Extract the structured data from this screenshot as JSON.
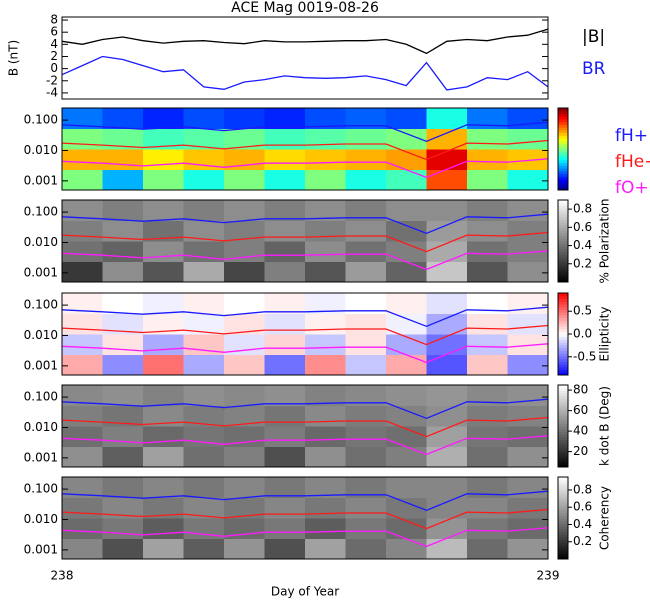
{
  "chart_data": [
    {
      "type": "line",
      "title": "ACE Mag 0019-08-26",
      "y_label": "B (nT)",
      "x": [
        238.0,
        238.0417,
        238.0833,
        238.125,
        238.1667,
        238.2083,
        238.25,
        238.2917,
        238.3333,
        238.375,
        238.4167,
        238.4583,
        238.5,
        238.5417,
        238.5833,
        238.625,
        238.6667,
        238.7083,
        238.75,
        238.7917,
        238.8333,
        238.875,
        238.9167,
        238.9583,
        239.0
      ],
      "series": [
        {
          "name": "|B|",
          "color": "#000000",
          "values": [
            4.5,
            4.0,
            4.8,
            5.2,
            4.6,
            4.2,
            4.5,
            4.6,
            4.3,
            4.1,
            4.6,
            4.4,
            4.4,
            4.5,
            4.6,
            4.6,
            4.8,
            4.0,
            2.5,
            4.5,
            4.8,
            4.6,
            5.2,
            5.5,
            6.5
          ]
        },
        {
          "name": "BR",
          "color": "#1a1aff",
          "values": [
            -1.0,
            0.5,
            2.0,
            1.5,
            0.5,
            -0.5,
            -0.2,
            -3.0,
            -3.4,
            -2.2,
            -1.8,
            -1.2,
            -1.5,
            -1.6,
            -1.5,
            -1.2,
            -1.8,
            -2.8,
            1.0,
            -3.5,
            -3.0,
            -1.5,
            -1.8,
            -0.5,
            -3.0
          ]
        }
      ],
      "xlim": [
        238,
        239
      ],
      "ylim": [
        -5,
        8.5
      ],
      "yticks": [
        -4,
        -2,
        0,
        2,
        4,
        6,
        8
      ]
    },
    {
      "type": "heatmap",
      "colormap": "jet",
      "clim": [
        -7,
        -2
      ],
      "log_y": true,
      "xlim": [
        238,
        239
      ],
      "ylim": [
        0.0005,
        0.25
      ],
      "yticks": [
        {
          "value": 0.001,
          "label": "0.001"
        },
        {
          "value": 0.01,
          "label": "0.010"
        },
        {
          "value": 0.1,
          "label": "0.100"
        }
      ],
      "z": [
        [
          -4.5,
          -5.5,
          -4.5,
          -5,
          -4.5,
          -5,
          -4.5,
          -5,
          -4.8,
          -3,
          -4.5,
          -5
        ],
        [
          -3.5,
          -3.5,
          -3.8,
          -3.6,
          -3.5,
          -3.7,
          -3.6,
          -3.5,
          -3.4,
          -2.5,
          -3.5,
          -3.6
        ],
        [
          -4.5,
          -4.6,
          -4.8,
          -4.7,
          -4.6,
          -4.8,
          -4.7,
          -4.6,
          -4.5,
          -3.5,
          -4.5,
          -4.6
        ],
        [
          -5.8,
          -6,
          -6.2,
          -6,
          -6.1,
          -6.2,
          -6,
          -5.9,
          -6,
          -5,
          -5.8,
          -6
        ]
      ],
      "x": [
        238.0,
        238.0833,
        238.1667,
        238.25,
        238.3333,
        238.4167,
        238.5,
        238.5833,
        238.6667,
        238.75,
        238.8333,
        238.9167,
        239.0
      ],
      "series": [
        {
          "name": "fH+",
          "color": "#1a1aff",
          "values": [
            0.07,
            0.06,
            0.05,
            0.06,
            0.045,
            0.06,
            0.06,
            0.065,
            0.065,
            0.02,
            0.07,
            0.065,
            0.085
          ]
        },
        {
          "name": "fHe+",
          "color": "#ff1a1a",
          "values": [
            0.0175,
            0.015,
            0.0125,
            0.015,
            0.0113,
            0.015,
            0.015,
            0.0163,
            0.0163,
            0.005,
            0.0175,
            0.0163,
            0.0213
          ]
        },
        {
          "name": "fO+",
          "color": "#ff1aff",
          "values": [
            0.0044,
            0.0038,
            0.0031,
            0.0038,
            0.0028,
            0.0038,
            0.0038,
            0.0041,
            0.0041,
            0.0013,
            0.0044,
            0.0041,
            0.0053
          ]
        }
      ]
    },
    {
      "type": "heatmap",
      "colormap": "gray",
      "clim": [
        0,
        0.9
      ],
      "log_y": true,
      "colorbar_label": "% Polarization",
      "cticks": [
        0.2,
        0.4,
        0.6,
        0.8
      ],
      "xlim": [
        238,
        239
      ],
      "ylim": [
        0.0005,
        0.25
      ],
      "yticks": [
        {
          "value": 0.001,
          "label": "0.001"
        },
        {
          "value": 0.01,
          "label": "0.010"
        },
        {
          "value": 0.1,
          "label": "0.100"
        }
      ],
      "z": [
        [
          0.2,
          0.5,
          0.3,
          0.6,
          0.25,
          0.45,
          0.3,
          0.55,
          0.35,
          0.7,
          0.3,
          0.5
        ],
        [
          0.4,
          0.35,
          0.5,
          0.4,
          0.45,
          0.35,
          0.5,
          0.4,
          0.45,
          0.6,
          0.4,
          0.45
        ],
        [
          0.45,
          0.5,
          0.4,
          0.5,
          0.45,
          0.5,
          0.45,
          0.5,
          0.4,
          0.55,
          0.5,
          0.45
        ],
        [
          0.5,
          0.45,
          0.5,
          0.45,
          0.5,
          0.45,
          0.5,
          0.45,
          0.5,
          0.5,
          0.45,
          0.5
        ]
      ]
    },
    {
      "type": "heatmap",
      "colormap": "bwr",
      "clim": [
        -0.9,
        0.9
      ],
      "log_y": true,
      "colorbar_label": "Ellipticity",
      "cticks": [
        -0.5,
        {
          "value": 0,
          "label": "0.0"
        },
        0.5
      ],
      "xlim": [
        238,
        239
      ],
      "ylim": [
        0.0005,
        0.25
      ],
      "yticks": [
        {
          "value": 0.001,
          "label": "0.001"
        },
        {
          "value": 0.01,
          "label": "0.010"
        },
        {
          "value": 0.1,
          "label": "0.100"
        }
      ],
      "z": [
        [
          0.3,
          -0.4,
          0.5,
          -0.3,
          0.2,
          -0.5,
          0.4,
          -0.2,
          0.3,
          -0.6,
          0.2,
          -0.4
        ],
        [
          -0.2,
          0.1,
          -0.3,
          0.2,
          -0.1,
          0.15,
          -0.2,
          0.1,
          -0.3,
          -0.5,
          -0.2,
          0.1
        ],
        [
          0.1,
          -0.1,
          0.05,
          -0.05,
          0.1,
          -0.1,
          0.05,
          0.1,
          -0.05,
          -0.3,
          0.1,
          -0.1
        ],
        [
          0.05,
          0.0,
          -0.05,
          0.05,
          0.0,
          0.05,
          -0.05,
          0.0,
          0.05,
          -0.1,
          0.0,
          0.05
        ]
      ]
    },
    {
      "type": "heatmap",
      "colormap": "gray",
      "clim": [
        5,
        85
      ],
      "log_y": true,
      "colorbar_label": "k dot B (Deg)",
      "cticks": [
        20,
        40,
        60,
        80
      ],
      "xlim": [
        238,
        239
      ],
      "ylim": [
        0.0005,
        0.25
      ],
      "yticks": [
        {
          "value": 0.001,
          "label": "0.001"
        },
        {
          "value": 0.01,
          "label": "0.010"
        },
        {
          "value": 0.1,
          "label": "0.100"
        }
      ],
      "z": [
        [
          50,
          35,
          55,
          40,
          45,
          30,
          50,
          40,
          45,
          60,
          40,
          50
        ],
        [
          40,
          45,
          38,
          42,
          40,
          44,
          38,
          42,
          40,
          55,
          42,
          40
        ],
        [
          45,
          42,
          48,
          44,
          46,
          42,
          48,
          44,
          46,
          50,
          44,
          46
        ],
        [
          48,
          50,
          46,
          50,
          48,
          50,
          46,
          48,
          50,
          52,
          48,
          50
        ]
      ]
    },
    {
      "type": "heatmap",
      "colormap": "gray",
      "clim": [
        0,
        0.95
      ],
      "log_y": true,
      "colorbar_label": "Coherency",
      "cticks": [
        0.2,
        0.4,
        0.6,
        0.8
      ],
      "xlim": [
        238,
        239
      ],
      "ylim": [
        0.0005,
        0.25
      ],
      "x_label": "Day of Year",
      "xticks": [
        238,
        239
      ],
      "yticks": [
        {
          "value": 0.001,
          "label": "0.001"
        },
        {
          "value": 0.01,
          "label": "0.010"
        },
        {
          "value": 0.1,
          "label": "0.100"
        }
      ],
      "z": [
        [
          0.5,
          0.3,
          0.6,
          0.35,
          0.55,
          0.3,
          0.6,
          0.4,
          0.5,
          0.7,
          0.4,
          0.55
        ],
        [
          0.4,
          0.45,
          0.35,
          0.45,
          0.4,
          0.45,
          0.35,
          0.45,
          0.4,
          0.55,
          0.45,
          0.4
        ],
        [
          0.45,
          0.5,
          0.45,
          0.5,
          0.45,
          0.5,
          0.45,
          0.5,
          0.45,
          0.5,
          0.5,
          0.45
        ],
        [
          0.5,
          0.45,
          0.5,
          0.45,
          0.5,
          0.45,
          0.5,
          0.45,
          0.5,
          0.5,
          0.45,
          0.5
        ]
      ]
    }
  ]
}
